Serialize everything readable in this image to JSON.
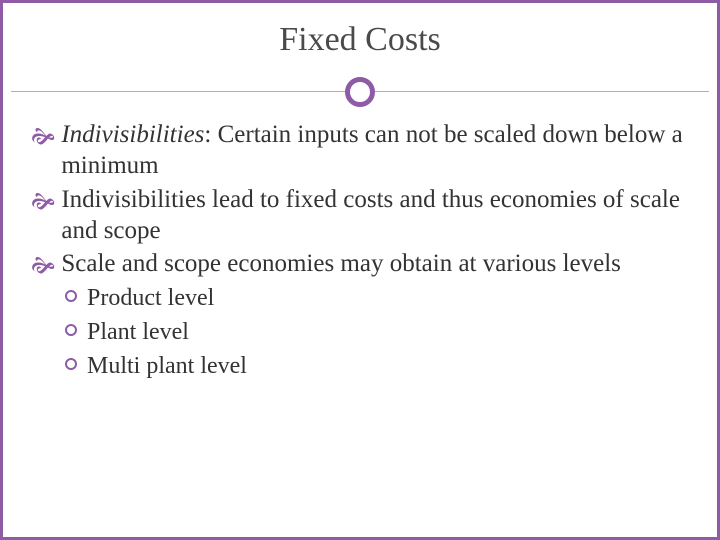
{
  "title": "Fixed Costs",
  "accent_color": "#8e5ba6",
  "text_color": "#333333",
  "title_color": "#4a4a4a",
  "background_color": "#ffffff",
  "divider_line_color": "#b0b0b0",
  "title_fontsize": 34,
  "body_fontsize": 25,
  "sub_fontsize": 24,
  "bullets": [
    {
      "lead_italic": "Indivisibilities",
      "rest": ": Certain inputs can not be scaled down below a minimum"
    },
    {
      "rest": "Indivisibilities lead to fixed costs and thus economies of scale and scope"
    },
    {
      "rest": "Scale and scope economies may obtain at various levels"
    }
  ],
  "sub_bullets": [
    "Product level",
    "Plant level",
    "Multi plant level"
  ]
}
